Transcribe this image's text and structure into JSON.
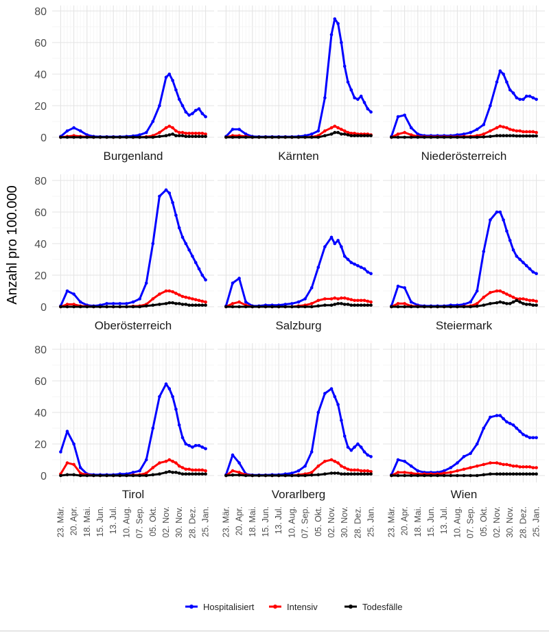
{
  "chart_data": {
    "type": "line",
    "ylabel": "Anzahl pro 100.000",
    "xlabel": "",
    "ylim": [
      0,
      80
    ],
    "y_ticks": [
      "0",
      "20",
      "40",
      "60",
      "80"
    ],
    "x_tick_labels": [
      "23. Mär.",
      "20. Apr.",
      "18. Mai.",
      "15. Jun.",
      "13. Jul.",
      "10. Aug.",
      "07. Sep.",
      "05. Okt.",
      "02. Nov.",
      "30. Nov.",
      "28. Dez.",
      "25. Jan."
    ],
    "x_range_weeks": [
      -0.5,
      44.5
    ],
    "legend_position": "bottom",
    "series_names": [
      "Hospitalisiert",
      "Intensiv",
      "Todesfälle"
    ],
    "series_colors": [
      "#0000ff",
      "#ff0000",
      "#000000"
    ],
    "x_weeks": [
      0,
      2,
      4,
      6,
      8,
      10,
      12,
      14,
      16,
      18,
      20,
      22,
      24,
      26,
      28,
      30,
      32,
      33,
      34,
      35,
      36,
      37,
      38,
      39,
      40,
      41,
      42,
      43,
      44
    ],
    "panels": [
      {
        "name": "Burgenland",
        "hosp": [
          0.5,
          4,
          6,
          4,
          1.5,
          0.5,
          0.3,
          0.3,
          0.3,
          0.3,
          0.5,
          0.8,
          1.5,
          3,
          10,
          20,
          38,
          40,
          36,
          30,
          24,
          20,
          16,
          14,
          15,
          17,
          18,
          15,
          13
        ],
        "icu": [
          0,
          0.5,
          1,
          0.5,
          0.2,
          0,
          0,
          0,
          0,
          0,
          0,
          0,
          0,
          0.3,
          1,
          3,
          6,
          7,
          6,
          4,
          3,
          3,
          2.5,
          2.5,
          2.5,
          2.5,
          2.5,
          2.5,
          2
        ],
        "death": [
          0,
          0,
          0,
          0,
          0,
          0,
          0,
          0,
          0,
          0,
          0,
          0,
          0,
          0,
          0,
          0.5,
          1,
          1.5,
          2,
          1,
          1,
          1,
          0.5,
          0.5,
          0.5,
          0.5,
          0.5,
          0.5,
          0.5
        ]
      },
      {
        "name": "Kärnten",
        "hosp": [
          0.5,
          5,
          5,
          2,
          0.5,
          0.3,
          0.3,
          0.3,
          0.3,
          0.3,
          0.3,
          0.5,
          1,
          2,
          4,
          25,
          65,
          75,
          72,
          60,
          45,
          35,
          30,
          25,
          24,
          26,
          22,
          18,
          16
        ],
        "icu": [
          0,
          1,
          1,
          0.5,
          0,
          0,
          0,
          0,
          0,
          0,
          0,
          0,
          0,
          0.2,
          1,
          4,
          6,
          7,
          6,
          5,
          4,
          3,
          2.5,
          2.5,
          2,
          2,
          2,
          2,
          1.5
        ],
        "death": [
          0,
          0,
          0,
          0,
          0,
          0,
          0,
          0,
          0,
          0,
          0,
          0,
          0,
          0,
          0,
          1,
          2,
          3,
          3,
          2,
          2,
          1.5,
          1,
          1,
          1,
          1,
          1,
          1,
          1
        ]
      },
      {
        "name": "Niederösterreich",
        "hosp": [
          0.5,
          13,
          14,
          6,
          2,
          1,
          1,
          1,
          1,
          1,
          1.5,
          2,
          3,
          5,
          8,
          20,
          35,
          42,
          40,
          35,
          30,
          28,
          25,
          24,
          24,
          26,
          26,
          25,
          24
        ],
        "icu": [
          0,
          2,
          3,
          1.5,
          0.5,
          0.3,
          0.3,
          0.3,
          0.3,
          0.3,
          0.3,
          0.5,
          0.5,
          1,
          2,
          4,
          6,
          7,
          6.5,
          6,
          5,
          4.5,
          4,
          4,
          3.5,
          3.5,
          3.5,
          3.5,
          3
        ],
        "death": [
          0,
          0,
          0,
          0,
          0,
          0,
          0,
          0,
          0,
          0,
          0,
          0,
          0,
          0,
          0.2,
          0.5,
          1,
          1,
          1,
          1,
          1,
          1,
          0.8,
          0.8,
          0.8,
          0.8,
          0.8,
          0.8,
          0.8
        ]
      },
      {
        "name": "Oberösterreich",
        "hosp": [
          0.5,
          10,
          8,
          3,
          1,
          0.5,
          1,
          2,
          2,
          2,
          2,
          3,
          5,
          15,
          40,
          70,
          74,
          72,
          66,
          58,
          50,
          44,
          40,
          36,
          32,
          28,
          24,
          20,
          17
        ],
        "icu": [
          0,
          1.5,
          1.5,
          0.5,
          0.2,
          0,
          0,
          0,
          0,
          0,
          0,
          0.3,
          0.5,
          1.5,
          5,
          8,
          10,
          10,
          9.5,
          8.5,
          7.5,
          6.5,
          6,
          5.5,
          5,
          4.5,
          4,
          3.5,
          3
        ],
        "death": [
          0,
          0,
          0,
          0,
          0,
          0,
          0,
          0,
          0,
          0,
          0,
          0,
          0,
          0.5,
          1,
          1.5,
          2,
          2.5,
          2.5,
          2,
          2,
          1.5,
          1.5,
          1,
          1,
          1,
          1,
          1,
          1
        ]
      },
      {
        "name": "Salzburg",
        "hosp": [
          0.5,
          15,
          18,
          3,
          0.5,
          0.5,
          1,
          1,
          1,
          1.5,
          2,
          3,
          5,
          12,
          25,
          38,
          44,
          40,
          42,
          38,
          32,
          30,
          28,
          27,
          26,
          25,
          24,
          22,
          21
        ],
        "icu": [
          0,
          2,
          3,
          1,
          0,
          0,
          0,
          0,
          0,
          0,
          0,
          0.5,
          1,
          2,
          4,
          5,
          5,
          5.5,
          5,
          5.5,
          5.5,
          5,
          4.5,
          4,
          4,
          4,
          4,
          3.5,
          3
        ],
        "death": [
          0,
          0,
          0,
          0,
          0,
          0,
          0,
          0,
          0,
          0,
          0,
          0,
          0,
          0,
          0.5,
          1,
          1,
          1.5,
          2,
          2,
          1.5,
          1.5,
          1,
          1,
          1,
          1,
          1,
          1,
          1
        ]
      },
      {
        "name": "Steiermark",
        "hosp": [
          0.5,
          13,
          12,
          3,
          1,
          0.5,
          0.5,
          0.5,
          0.5,
          1,
          1,
          1.5,
          3,
          10,
          35,
          55,
          60,
          60,
          55,
          48,
          42,
          36,
          32,
          30,
          28,
          26,
          24,
          22,
          21
        ],
        "icu": [
          0,
          2,
          2,
          0.5,
          0.2,
          0,
          0,
          0,
          0,
          0,
          0,
          0.2,
          0.5,
          2,
          6,
          9,
          10,
          10,
          9,
          8,
          7,
          6,
          5,
          5,
          5,
          4.5,
          4,
          4,
          3.5
        ],
        "death": [
          0,
          0,
          0,
          0,
          0,
          0,
          0,
          0,
          0,
          0,
          0,
          0,
          0,
          0.3,
          1,
          2,
          2.5,
          3,
          2.5,
          2,
          2,
          3,
          4,
          3,
          2,
          1.5,
          1.5,
          1,
          1
        ]
      },
      {
        "name": "Tirol",
        "hosp": [
          15,
          28,
          20,
          5,
          1,
          0.5,
          0.5,
          0.5,
          0.5,
          1,
          1,
          2,
          3,
          10,
          30,
          50,
          58,
          55,
          50,
          42,
          32,
          24,
          20,
          19,
          18,
          19,
          19,
          18,
          17
        ],
        "icu": [
          1,
          8,
          7,
          1.5,
          0.5,
          0,
          0,
          0,
          0,
          0,
          0,
          0.3,
          0.5,
          1.5,
          5,
          8,
          9,
          10,
          9,
          8,
          6,
          5,
          4,
          4,
          3.5,
          3.5,
          3.5,
          3.5,
          3
        ],
        "death": [
          0,
          0.5,
          0.5,
          0,
          0,
          0,
          0,
          0,
          0,
          0,
          0,
          0,
          0,
          0,
          0.5,
          1,
          2,
          2.5,
          2,
          2,
          1.5,
          1,
          1,
          1,
          1,
          1,
          1,
          1,
          1
        ]
      },
      {
        "name": "Vorarlberg",
        "hosp": [
          0.5,
          13,
          8,
          1,
          0.3,
          0.3,
          0.3,
          0.5,
          0.5,
          1,
          1.5,
          3,
          6,
          15,
          40,
          52,
          55,
          50,
          45,
          35,
          25,
          18,
          16,
          18,
          20,
          18,
          15,
          13,
          12
        ],
        "icu": [
          0,
          3,
          2,
          0.5,
          0,
          0,
          0,
          0,
          0,
          0,
          0,
          0.5,
          1,
          2,
          6,
          9,
          10,
          9,
          8,
          6,
          5,
          4,
          3.5,
          3.5,
          3.5,
          3,
          3,
          3,
          2.5
        ],
        "death": [
          0,
          0.3,
          0.3,
          0,
          0,
          0,
          0,
          0,
          0,
          0,
          0,
          0,
          0,
          0.3,
          0.5,
          1,
          1.5,
          1.5,
          1.5,
          1,
          1,
          1,
          1,
          1,
          1,
          1,
          1,
          1,
          1
        ]
      },
      {
        "name": "Wien",
        "hosp": [
          0.5,
          10,
          9,
          6,
          3,
          2,
          2,
          2,
          3,
          5,
          8,
          12,
          14,
          20,
          30,
          37,
          38,
          38,
          36,
          34,
          33,
          32,
          30,
          28,
          26,
          25,
          24,
          24,
          24
        ],
        "icu": [
          0,
          2,
          2,
          1.5,
          1,
          1,
          1,
          1,
          1.5,
          2,
          3,
          4,
          5,
          6,
          7,
          8,
          8,
          7.5,
          7,
          7,
          6.5,
          6,
          6,
          5.5,
          5.5,
          5.5,
          5.5,
          5,
          5
        ],
        "death": [
          0,
          0,
          0,
          0,
          0,
          0,
          0,
          0,
          0,
          0,
          0,
          0,
          0,
          0,
          0.5,
          1,
          1,
          1,
          1,
          1,
          1,
          1,
          1,
          1,
          1,
          1,
          1,
          1,
          1
        ]
      }
    ]
  }
}
